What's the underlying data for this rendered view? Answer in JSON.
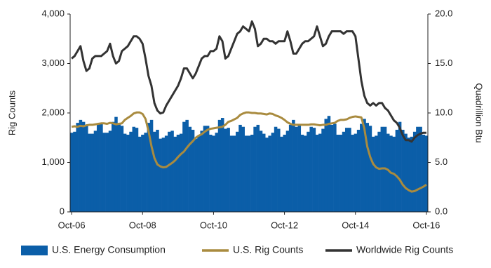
{
  "chart_data": {
    "type": "combo",
    "categories": [
      "Oct-06",
      null,
      null,
      null,
      null,
      null,
      null,
      null,
      null,
      null,
      null,
      null,
      null,
      null,
      null,
      null,
      null,
      null,
      null,
      null,
      null,
      null,
      null,
      null,
      "Oct-08",
      null,
      null,
      null,
      null,
      null,
      null,
      null,
      null,
      null,
      null,
      null,
      null,
      null,
      null,
      null,
      null,
      null,
      null,
      null,
      null,
      null,
      null,
      null,
      "Oct-10",
      null,
      null,
      null,
      null,
      null,
      null,
      null,
      null,
      null,
      null,
      null,
      null,
      null,
      null,
      null,
      null,
      null,
      null,
      null,
      null,
      null,
      null,
      null,
      "Oct-12",
      null,
      null,
      null,
      null,
      null,
      null,
      null,
      null,
      null,
      null,
      null,
      null,
      null,
      null,
      null,
      null,
      null,
      null,
      null,
      null,
      null,
      null,
      null,
      "Oct-14",
      null,
      null,
      null,
      null,
      null,
      null,
      null,
      null,
      null,
      null,
      null,
      null,
      null,
      null,
      null,
      null,
      null,
      null,
      null,
      null,
      null,
      null,
      null,
      "Oct-16"
    ],
    "y_label": "Rig Counts",
    "y2_label": "Quadrillion Btu",
    "ylim": [
      0,
      4000
    ],
    "yticks": [
      0,
      {
        "value": 1000,
        "label": "1,000"
      },
      {
        "value": 2000,
        "label": "2,000"
      },
      {
        "value": 3000,
        "label": "3,000"
      },
      {
        "value": 4000,
        "label": "4,000"
      }
    ],
    "y2lim": [
      0,
      20
    ],
    "y2ticks": [
      {
        "value": 0,
        "label": "0.0"
      },
      {
        "value": 5,
        "label": "5.0"
      },
      {
        "value": 10,
        "label": "10.0"
      },
      {
        "value": 15,
        "label": "15.0"
      },
      {
        "value": 20,
        "label": "20.0"
      }
    ],
    "series": [
      {
        "name": "U.S. Energy Consumption",
        "type": "bar",
        "axis": "y2",
        "color": "#0b5ea8",
        "values": [
          8.0,
          8.1,
          9.0,
          9.3,
          9.1,
          8.7,
          7.9,
          7.9,
          8.2,
          8.9,
          9.0,
          8.0,
          8.0,
          8.2,
          9.1,
          9.6,
          8.9,
          8.7,
          7.9,
          7.8,
          8.1,
          8.6,
          8.5,
          7.6,
          7.8,
          8.0,
          9.0,
          9.3,
          8.1,
          8.3,
          7.4,
          7.5,
          7.7,
          8.1,
          8.2,
          7.6,
          7.8,
          7.9,
          9.1,
          9.3,
          8.6,
          8.3,
          7.4,
          7.7,
          8.2,
          8.7,
          8.7,
          7.8,
          7.7,
          8.0,
          9.3,
          9.5,
          8.4,
          8.5,
          7.7,
          7.7,
          8.1,
          8.8,
          8.6,
          7.7,
          7.7,
          7.8,
          8.6,
          8.8,
          8.2,
          7.9,
          7.5,
          7.7,
          8.0,
          8.6,
          8.4,
          7.6,
          7.8,
          8.2,
          8.8,
          9.3,
          8.6,
          8.9,
          7.8,
          7.7,
          8.1,
          8.6,
          8.5,
          7.8,
          7.9,
          8.4,
          9.4,
          9.7,
          8.8,
          8.9,
          7.8,
          7.8,
          8.1,
          8.5,
          8.5,
          7.8,
          7.9,
          8.3,
          8.9,
          9.4,
          9.0,
          8.7,
          7.6,
          7.7,
          8.1,
          8.6,
          8.6,
          7.9,
          7.7,
          7.6,
          8.3,
          9.1,
          8.3,
          7.9,
          7.5,
          7.6,
          8.1,
          8.6,
          8.6,
          7.8,
          7.7
        ]
      },
      {
        "name": "U.S. Rig Counts",
        "type": "line",
        "axis": "y",
        "color": "#a98b3f",
        "values": [
          1720,
          1730,
          1720,
          1740,
          1730,
          1750,
          1760,
          1760,
          1770,
          1780,
          1790,
          1790,
          1780,
          1800,
          1790,
          1770,
          1780,
          1790,
          1860,
          1900,
          1940,
          1990,
          2010,
          2010,
          1980,
          1880,
          1640,
          1330,
          1090,
          960,
          920,
          900,
          910,
          950,
          990,
          1040,
          1110,
          1170,
          1220,
          1300,
          1370,
          1430,
          1500,
          1540,
          1570,
          1620,
          1660,
          1680,
          1690,
          1700,
          1710,
          1720,
          1760,
          1820,
          1840,
          1870,
          1900,
          1960,
          1990,
          2010,
          2010,
          2000,
          2000,
          1990,
          1990,
          1980,
          1970,
          1990,
          1980,
          1950,
          1930,
          1900,
          1860,
          1810,
          1780,
          1760,
          1760,
          1760,
          1760,
          1760,
          1760,
          1770,
          1770,
          1760,
          1750,
          1760,
          1760,
          1780,
          1790,
          1800,
          1840,
          1860,
          1860,
          1870,
          1900,
          1920,
          1930,
          1920,
          1910,
          1690,
          1320,
          1110,
          970,
          900,
          870,
          880,
          880,
          850,
          790,
          770,
          720,
          650,
          550,
          480,
          440,
          410,
          420,
          450,
          480,
          510,
          550
        ]
      },
      {
        "name": "Worldwide Rig Counts",
        "type": "line",
        "axis": "y",
        "color": "#333333",
        "values": [
          3100,
          3150,
          3250,
          3350,
          3050,
          2850,
          2900,
          3100,
          3150,
          3150,
          3150,
          3200,
          3250,
          3400,
          3150,
          3000,
          3050,
          3250,
          3300,
          3350,
          3450,
          3550,
          3550,
          3500,
          3400,
          3100,
          2750,
          2550,
          2200,
          2050,
          1990,
          2010,
          2150,
          2250,
          2350,
          2450,
          2550,
          2700,
          2900,
          2900,
          2800,
          2700,
          2800,
          2950,
          3100,
          3150,
          3150,
          3250,
          3250,
          3300,
          3550,
          3450,
          3100,
          3150,
          3300,
          3450,
          3600,
          3650,
          3750,
          3700,
          3650,
          3850,
          3700,
          3350,
          3400,
          3500,
          3500,
          3450,
          3450,
          3400,
          3450,
          3450,
          3450,
          3650,
          3450,
          3200,
          3200,
          3300,
          3400,
          3450,
          3450,
          3500,
          3550,
          3750,
          3550,
          3350,
          3400,
          3550,
          3650,
          3650,
          3650,
          3650,
          3600,
          3650,
          3650,
          3650,
          3550,
          3100,
          2650,
          2350,
          2200,
          2150,
          2200,
          2150,
          2200,
          2200,
          2100,
          2050,
          1950,
          1850,
          1800,
          1700,
          1550,
          1450,
          1450,
          1420,
          1500,
          1550,
          1580,
          1600,
          1600
        ]
      }
    ]
  }
}
